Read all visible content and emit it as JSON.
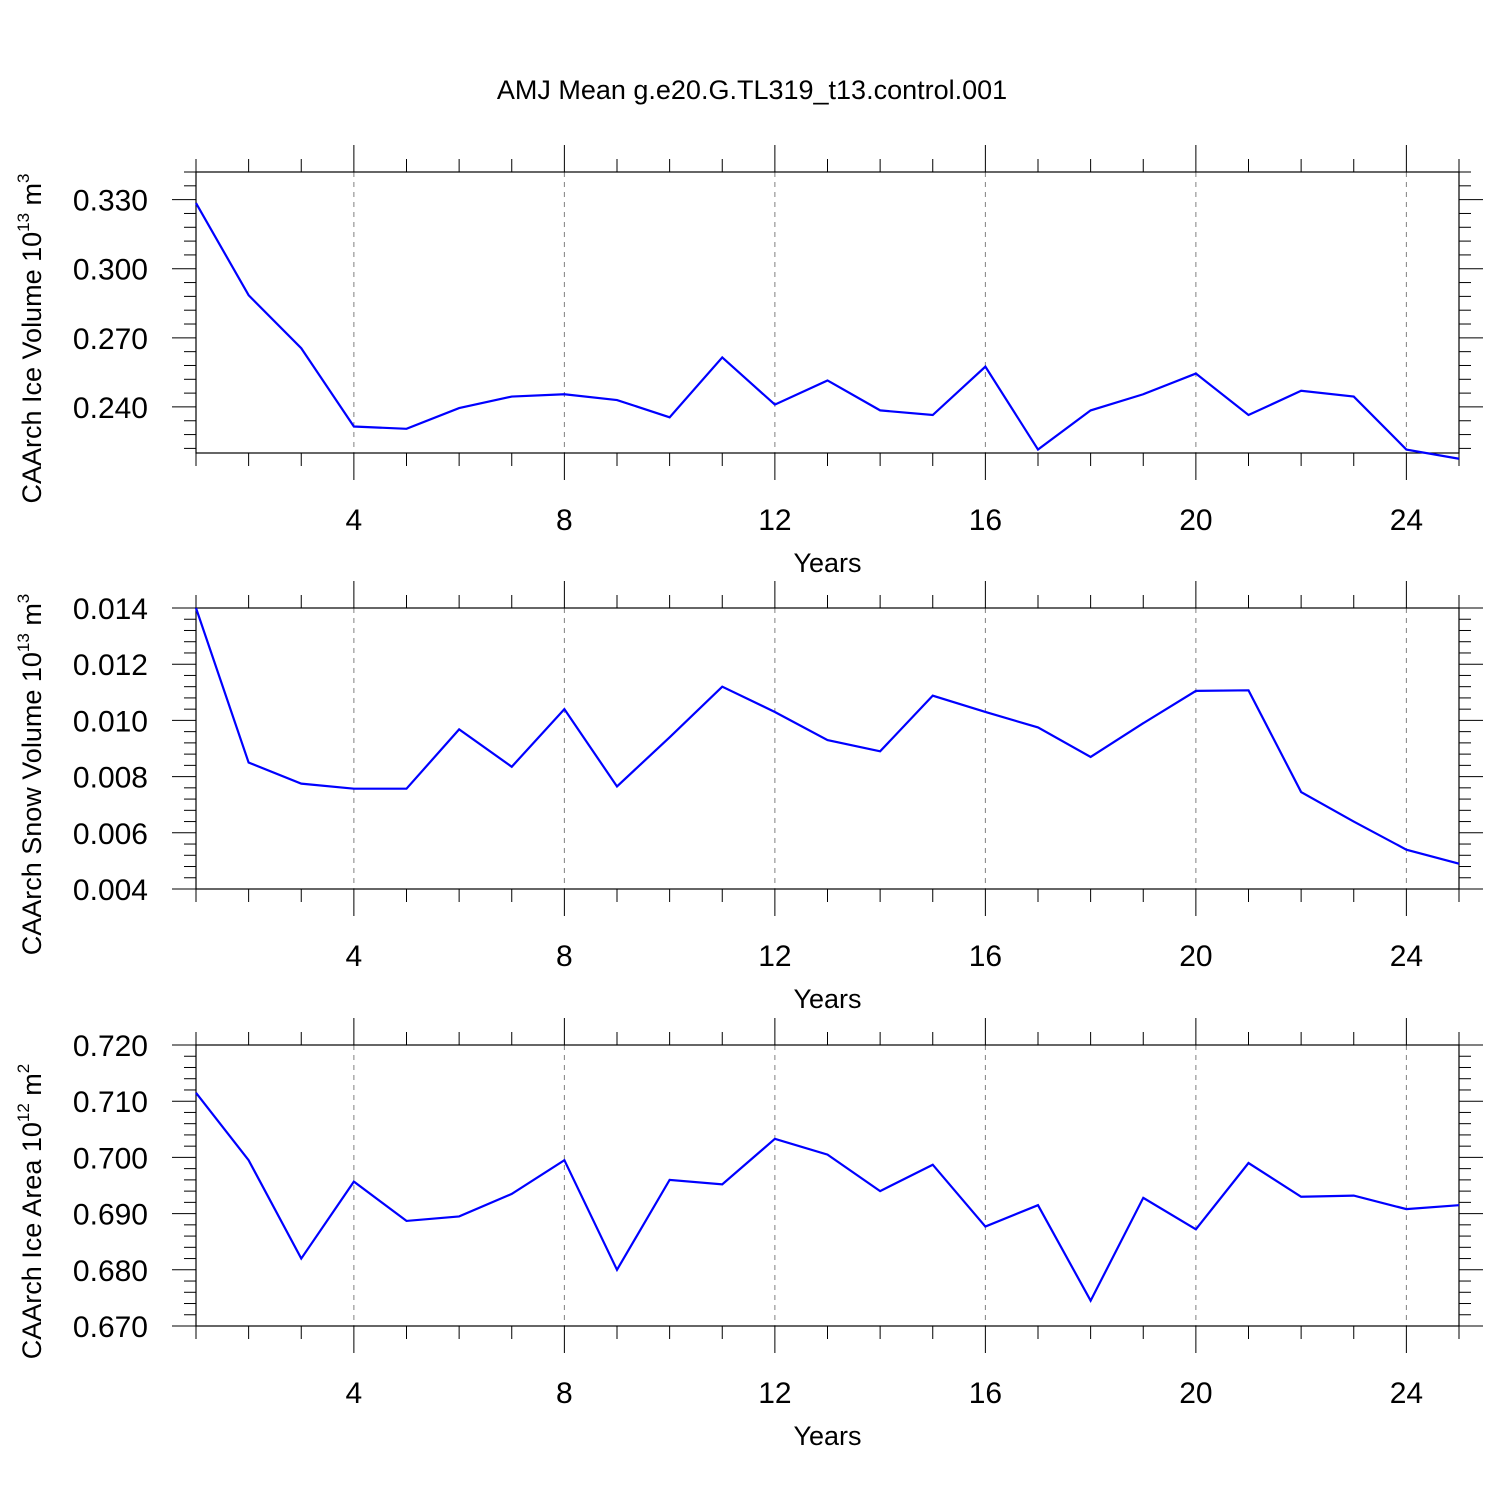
{
  "title": "AMJ Mean g.e20.G.TL319_t13.control.001",
  "colors": {
    "series": "#0000ff",
    "grid": "#808080"
  },
  "chart_data": [
    {
      "type": "line",
      "xlabel": "Years",
      "ylabel": "CAArch Ice Volume 10",
      "ylabel_exp": "13",
      "ylabel_unit": " m",
      "ylabel_unit_exp": "3",
      "xlim": [
        1,
        25
      ],
      "ylim": [
        0.22,
        0.342
      ],
      "xticks": [
        4,
        8,
        12,
        16,
        20,
        24
      ],
      "xtick_labels": [
        "4",
        "8",
        "12",
        "16",
        "20",
        "24"
      ],
      "yticks": [
        0.24,
        0.27,
        0.3,
        0.33
      ],
      "ytick_labels": [
        "0.240",
        "0.270",
        "0.300",
        "0.330"
      ],
      "grid": "x-dashed",
      "x": [
        1,
        2,
        3,
        4,
        5,
        6,
        7,
        8,
        9,
        10,
        11,
        12,
        13,
        14,
        15,
        16,
        17,
        18,
        19,
        20,
        21,
        22,
        23,
        24,
        25
      ],
      "series": [
        {
          "values": [
            0.3285,
            0.2885,
            0.2655,
            0.2315,
            0.2305,
            0.2395,
            0.2445,
            0.2455,
            0.243,
            0.2355,
            0.2615,
            0.241,
            0.2515,
            0.2385,
            0.2365,
            0.2575,
            0.2215,
            0.2385,
            0.2455,
            0.2545,
            0.2365,
            0.247,
            0.2445,
            0.2215,
            0.2175
          ]
        }
      ]
    },
    {
      "type": "line",
      "xlabel": "Years",
      "ylabel": "CAArch Snow Volume 10",
      "ylabel_exp": "13",
      "ylabel_unit": " m",
      "ylabel_unit_exp": "3",
      "xlim": [
        1,
        25
      ],
      "ylim": [
        0.004,
        0.014
      ],
      "xticks": [
        4,
        8,
        12,
        16,
        20,
        24
      ],
      "xtick_labels": [
        "4",
        "8",
        "12",
        "16",
        "20",
        "24"
      ],
      "yticks": [
        0.004,
        0.006,
        0.008,
        0.01,
        0.012,
        0.014
      ],
      "ytick_labels": [
        "0.004",
        "0.006",
        "0.008",
        "0.010",
        "0.012",
        "0.014"
      ],
      "grid": "x-dashed",
      "x": [
        1,
        2,
        3,
        4,
        5,
        6,
        7,
        8,
        9,
        10,
        11,
        12,
        13,
        14,
        15,
        16,
        17,
        18,
        19,
        20,
        21,
        22,
        23,
        24,
        25
      ],
      "series": [
        {
          "values": [
            0.014,
            0.0085,
            0.00775,
            0.00757,
            0.00757,
            0.00968,
            0.00835,
            0.0104,
            0.00765,
            0.0094,
            0.0112,
            0.0103,
            0.0093,
            0.0089,
            0.01088,
            0.0103,
            0.00975,
            0.0087,
            0.0099,
            0.01105,
            0.01107,
            0.00745,
            0.0064,
            0.0054,
            0.0049
          ]
        }
      ]
    },
    {
      "type": "line",
      "xlabel": "Years",
      "ylabel": "CAArch Ice Area 10",
      "ylabel_exp": "12",
      "ylabel_unit": " m",
      "ylabel_unit_exp": "2",
      "xlim": [
        1,
        25
      ],
      "ylim": [
        0.67,
        0.72
      ],
      "xticks": [
        4,
        8,
        12,
        16,
        20,
        24
      ],
      "xtick_labels": [
        "4",
        "8",
        "12",
        "16",
        "20",
        "24"
      ],
      "yticks": [
        0.67,
        0.68,
        0.69,
        0.7,
        0.71,
        0.72
      ],
      "ytick_labels": [
        "0.670",
        "0.680",
        "0.690",
        "0.700",
        "0.710",
        "0.720"
      ],
      "grid": "x-dashed",
      "x": [
        1,
        2,
        3,
        4,
        5,
        6,
        7,
        8,
        9,
        10,
        11,
        12,
        13,
        14,
        15,
        16,
        17,
        18,
        19,
        20,
        21,
        22,
        23,
        24,
        25
      ],
      "series": [
        {
          "values": [
            0.7115,
            0.6995,
            0.682,
            0.6957,
            0.6887,
            0.6895,
            0.6935,
            0.6995,
            0.68,
            0.696,
            0.6952,
            0.7033,
            0.7005,
            0.694,
            0.6987,
            0.6877,
            0.6915,
            0.6745,
            0.6928,
            0.6872,
            0.699,
            0.693,
            0.6932,
            0.6908,
            0.6915
          ]
        }
      ]
    }
  ]
}
